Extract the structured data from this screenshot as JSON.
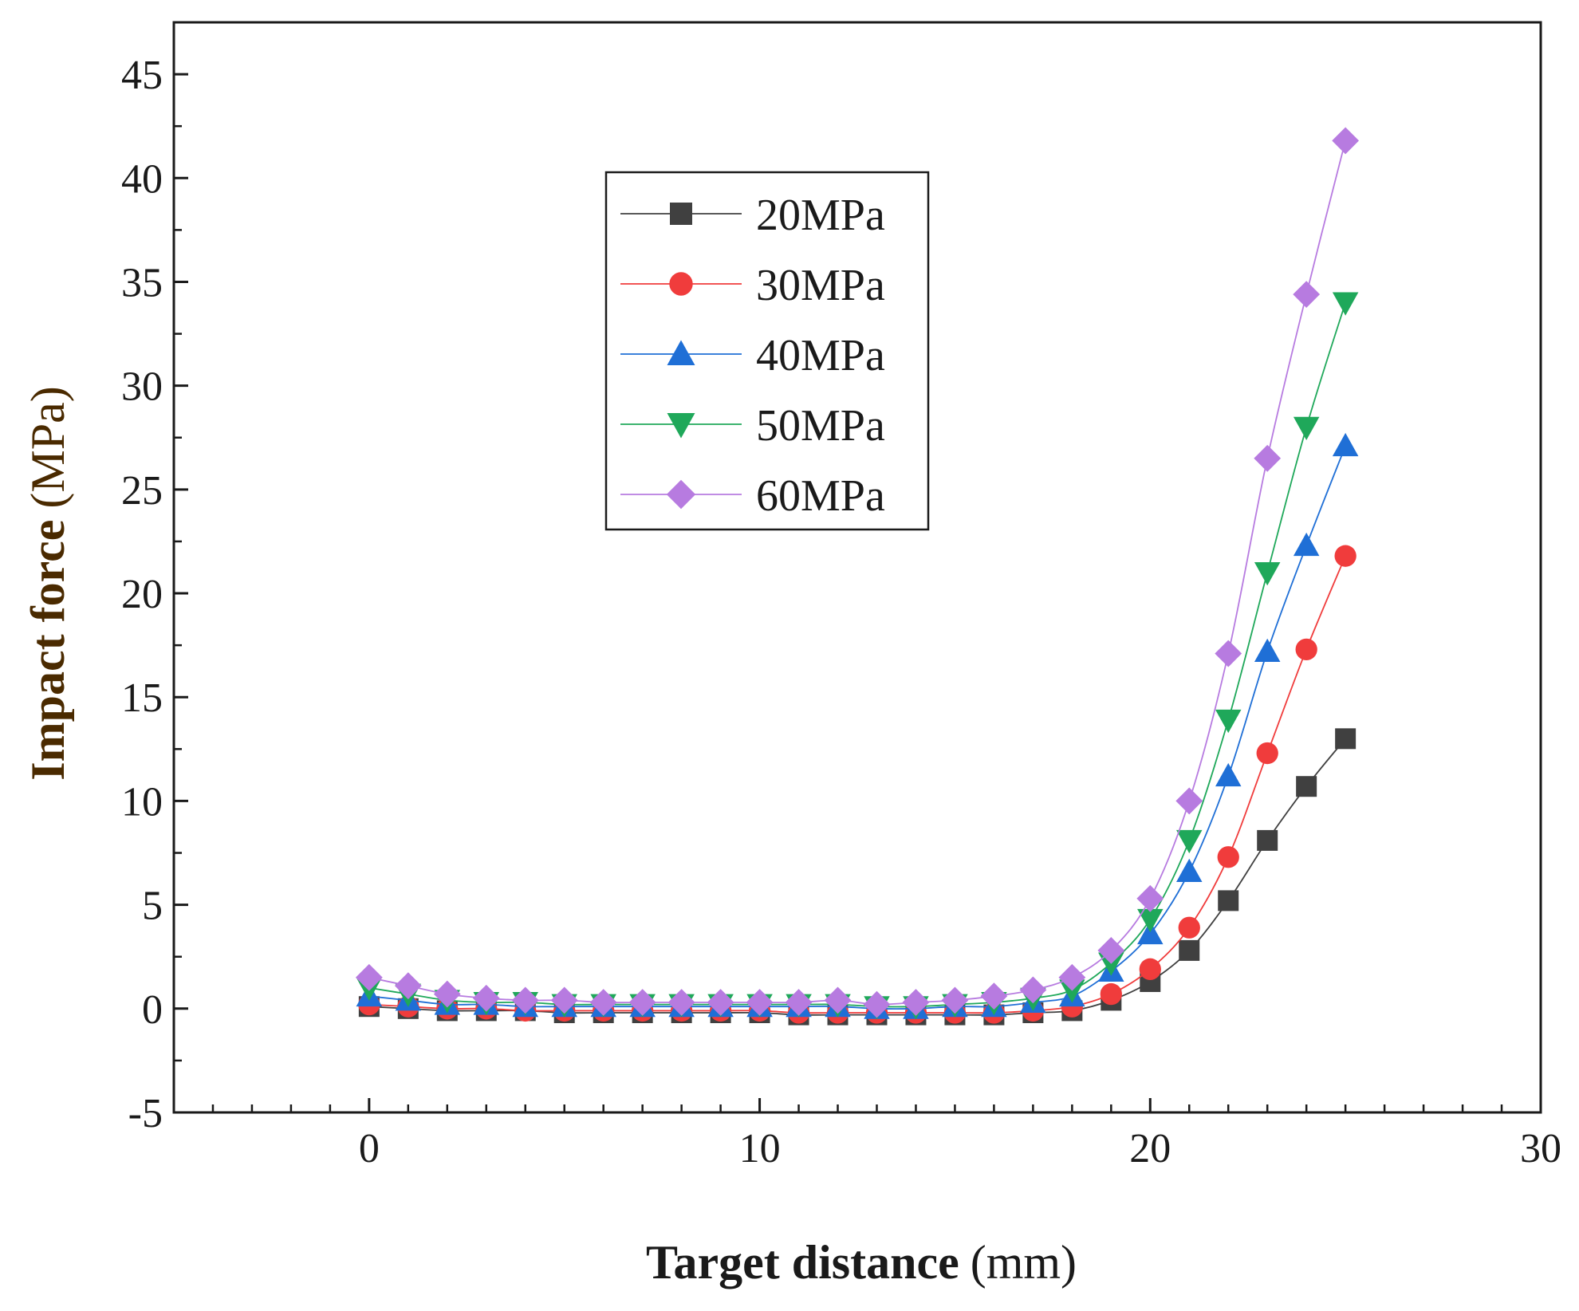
{
  "chart_data": {
    "type": "line",
    "title": "",
    "xlabel": "Target distance (mm)",
    "ylabel": "Impact force (MPa)",
    "xlabel_parts": {
      "main": "Target distance",
      "unit": "(mm)"
    },
    "ylabel_parts": {
      "main": "Impact force",
      "unit": "(MPa)"
    },
    "xlim": [
      -5,
      30
    ],
    "ylim": [
      -5,
      47.5
    ],
    "xticks": [
      0,
      10,
      20,
      30
    ],
    "yticks": [
      -5,
      0,
      5,
      10,
      15,
      20,
      25,
      30,
      35,
      40,
      45
    ],
    "x": [
      0,
      1,
      2,
      3,
      4,
      5,
      6,
      7,
      8,
      9,
      10,
      11,
      12,
      13,
      14,
      15,
      16,
      17,
      18,
      19,
      20,
      21,
      22,
      23,
      24,
      25
    ],
    "series": [
      {
        "name": "20MPa",
        "marker": "square",
        "color": "#404040",
        "values": [
          0.1,
          0.0,
          -0.1,
          -0.1,
          -0.1,
          -0.2,
          -0.2,
          -0.2,
          -0.2,
          -0.2,
          -0.2,
          -0.3,
          -0.3,
          -0.3,
          -0.3,
          -0.3,
          -0.3,
          -0.2,
          -0.1,
          0.4,
          1.3,
          2.8,
          5.2,
          8.1,
          10.7,
          13.0
        ]
      },
      {
        "name": "30MPa",
        "marker": "circle",
        "color": "#f03c3c",
        "values": [
          0.2,
          0.1,
          0.0,
          0.0,
          -0.1,
          -0.1,
          -0.1,
          -0.1,
          -0.1,
          -0.1,
          -0.1,
          -0.2,
          -0.2,
          -0.2,
          -0.2,
          -0.2,
          -0.2,
          -0.1,
          0.1,
          0.7,
          1.9,
          3.9,
          7.3,
          12.3,
          17.3,
          21.8
        ]
      },
      {
        "name": "40MPa",
        "marker": "triangle-up",
        "color": "#1f6fd6",
        "values": [
          0.6,
          0.4,
          0.2,
          0.2,
          0.1,
          0.1,
          0.1,
          0.1,
          0.1,
          0.1,
          0.1,
          0.1,
          0.1,
          0.0,
          0.0,
          0.1,
          0.1,
          0.3,
          0.6,
          1.8,
          3.6,
          6.6,
          11.2,
          17.2,
          22.3,
          27.1
        ]
      },
      {
        "name": "50MPa",
        "marker": "triangle-down",
        "color": "#1fa85a",
        "values": [
          1.0,
          0.7,
          0.4,
          0.3,
          0.3,
          0.2,
          0.2,
          0.2,
          0.2,
          0.2,
          0.2,
          0.2,
          0.2,
          0.1,
          0.1,
          0.2,
          0.3,
          0.5,
          0.9,
          2.2,
          4.3,
          8.1,
          13.9,
          21.0,
          28.0,
          34.0
        ]
      },
      {
        "name": "60MPa",
        "marker": "diamond",
        "color": "#b77be0",
        "values": [
          1.5,
          1.1,
          0.7,
          0.5,
          0.4,
          0.4,
          0.3,
          0.3,
          0.3,
          0.3,
          0.3,
          0.3,
          0.4,
          0.2,
          0.3,
          0.4,
          0.6,
          0.9,
          1.5,
          2.8,
          5.3,
          10.0,
          17.1,
          26.5,
          34.4,
          41.8
        ]
      }
    ],
    "legend": {
      "position": "upper-left-inside"
    },
    "grid": false
  },
  "colors": {
    "axis": "#1a1a1a",
    "ylabel_color": "#4a2a00"
  }
}
